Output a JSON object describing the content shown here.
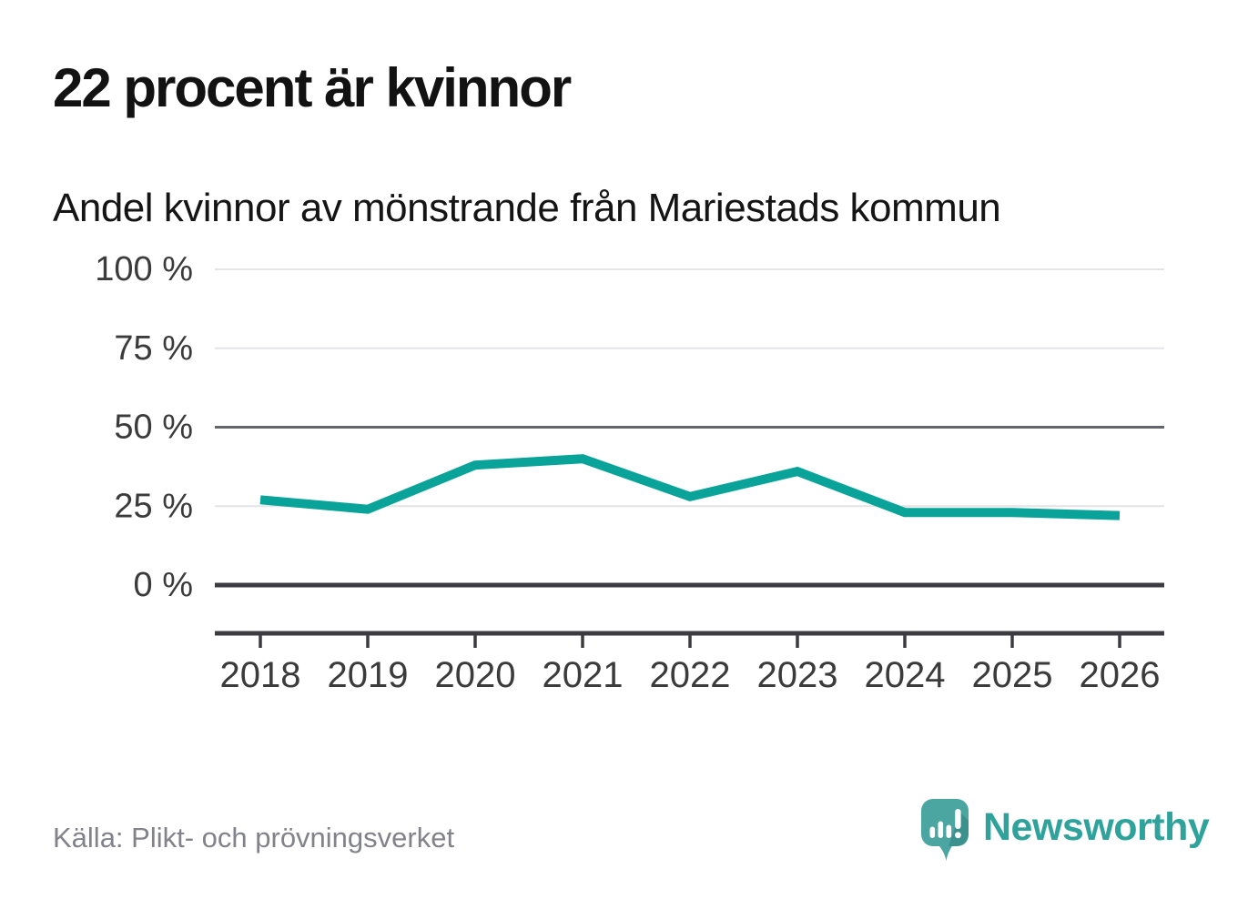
{
  "header": {
    "title": "22 procent är kvinnor",
    "subtitle": "Andel kvinnor av mönstrande från Mariestads kommun"
  },
  "chart_data": {
    "type": "line",
    "title": "Andel kvinnor av mönstrande från Mariestads kommun",
    "categories": [
      2018,
      2019,
      2020,
      2021,
      2022,
      2023,
      2024,
      2025,
      2026
    ],
    "series": [
      {
        "name": "Andel kvinnor av mönstrande",
        "values": [
          27,
          24,
          38,
          40,
          28,
          36,
          23,
          23,
          22
        ]
      }
    ],
    "unit": "%",
    "ylim": [
      0,
      100
    ],
    "yticks": [
      0,
      25,
      50,
      75,
      100
    ],
    "ytick_labels": [
      "0 %",
      "25 %",
      "50 %",
      "75 %",
      "100 %"
    ],
    "grid": true,
    "legend": "none",
    "line_color": "#0aa39a"
  },
  "footer": {
    "source": "Källa: Plikt- och prövningsverket",
    "brand": "Newsworthy"
  },
  "colors": {
    "accent_teal": "#0aa39a",
    "logo_teal": "#4ba5a1",
    "brand_text_teal": "#2fa39b",
    "grid_light": "#e4e4e6",
    "grid_mid": "#65656d",
    "axis_dark": "#3b3b40",
    "tick_label": "#3b3b3b",
    "source_gray": "#82828a"
  }
}
